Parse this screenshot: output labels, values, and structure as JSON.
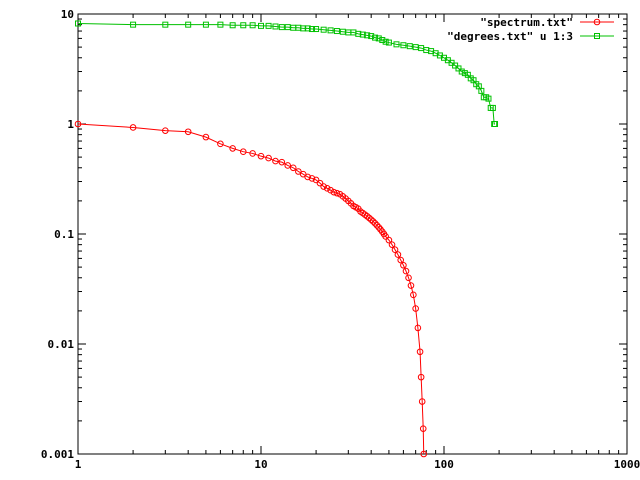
{
  "chart_data": {
    "type": "line",
    "xscale": "log",
    "yscale": "log",
    "xlim": [
      1,
      1000
    ],
    "ylim": [
      0.001,
      10
    ],
    "xticks": [
      "1",
      "10",
      "100",
      "1000"
    ],
    "yticks": [
      "10",
      "1",
      "0.1",
      "0.01",
      "0.001"
    ],
    "grid": false,
    "legend_position": "top-right",
    "series": [
      {
        "name": "\"spectrum.txt\"",
        "color": "#ff0000",
        "marker": "circle",
        "points": [
          [
            1,
            1.0
          ],
          [
            2,
            0.93
          ],
          [
            3,
            0.87
          ],
          [
            4,
            0.85
          ],
          [
            5,
            0.76
          ],
          [
            6,
            0.66
          ],
          [
            7,
            0.6
          ],
          [
            8,
            0.56
          ],
          [
            9,
            0.54
          ],
          [
            10,
            0.51
          ],
          [
            11,
            0.49
          ],
          [
            12,
            0.46
          ],
          [
            13,
            0.45
          ],
          [
            14,
            0.42
          ],
          [
            15,
            0.4
          ],
          [
            16,
            0.37
          ],
          [
            17,
            0.35
          ],
          [
            18,
            0.33
          ],
          [
            19,
            0.32
          ],
          [
            20,
            0.31
          ],
          [
            21,
            0.29
          ],
          [
            22,
            0.27
          ],
          [
            23,
            0.26
          ],
          [
            24,
            0.25
          ],
          [
            25,
            0.24
          ],
          [
            26,
            0.235
          ],
          [
            27,
            0.23
          ],
          [
            28,
            0.22
          ],
          [
            29,
            0.21
          ],
          [
            30,
            0.2
          ],
          [
            31,
            0.19
          ],
          [
            32,
            0.18
          ],
          [
            33,
            0.175
          ],
          [
            34,
            0.17
          ],
          [
            35,
            0.16
          ],
          [
            36,
            0.155
          ],
          [
            37,
            0.15
          ],
          [
            38,
            0.145
          ],
          [
            39,
            0.14
          ],
          [
            40,
            0.135
          ],
          [
            41,
            0.13
          ],
          [
            42,
            0.125
          ],
          [
            43,
            0.12
          ],
          [
            44,
            0.115
          ],
          [
            45,
            0.11
          ],
          [
            46,
            0.105
          ],
          [
            47,
            0.1
          ],
          [
            48,
            0.095
          ],
          [
            50,
            0.088
          ],
          [
            52,
            0.08
          ],
          [
            54,
            0.072
          ],
          [
            56,
            0.065
          ],
          [
            58,
            0.058
          ],
          [
            60,
            0.052
          ],
          [
            62,
            0.046
          ],
          [
            64,
            0.04
          ],
          [
            66,
            0.034
          ],
          [
            68,
            0.028
          ],
          [
            70,
            0.021
          ],
          [
            72,
            0.014
          ],
          [
            74,
            0.0085
          ],
          [
            75,
            0.005
          ],
          [
            76,
            0.003
          ],
          [
            77,
            0.0017
          ],
          [
            77.5,
            0.001
          ]
        ]
      },
      {
        "name": "\"degrees.txt\" u 1:3",
        "color": "#00c000",
        "marker": "square",
        "points": [
          [
            1,
            8.2
          ],
          [
            2,
            8.0
          ],
          [
            3,
            8.0
          ],
          [
            4,
            8.0
          ],
          [
            5,
            8.0
          ],
          [
            6,
            8.0
          ],
          [
            7,
            7.9
          ],
          [
            8,
            7.9
          ],
          [
            9,
            7.9
          ],
          [
            10,
            7.8
          ],
          [
            11,
            7.8
          ],
          [
            12,
            7.7
          ],
          [
            13,
            7.6
          ],
          [
            14,
            7.6
          ],
          [
            15,
            7.5
          ],
          [
            16,
            7.5
          ],
          [
            17,
            7.4
          ],
          [
            18,
            7.4
          ],
          [
            19,
            7.3
          ],
          [
            20,
            7.3
          ],
          [
            22,
            7.2
          ],
          [
            24,
            7.1
          ],
          [
            26,
            7.0
          ],
          [
            28,
            6.9
          ],
          [
            30,
            6.8
          ],
          [
            32,
            6.8
          ],
          [
            34,
            6.6
          ],
          [
            36,
            6.5
          ],
          [
            38,
            6.4
          ],
          [
            40,
            6.3
          ],
          [
            42,
            6.1
          ],
          [
            44,
            6.0
          ],
          [
            46,
            5.8
          ],
          [
            48,
            5.6
          ],
          [
            50,
            5.5
          ],
          [
            55,
            5.3
          ],
          [
            60,
            5.2
          ],
          [
            65,
            5.1
          ],
          [
            70,
            5.0
          ],
          [
            75,
            4.9
          ],
          [
            80,
            4.7
          ],
          [
            85,
            4.6
          ],
          [
            90,
            4.4
          ],
          [
            95,
            4.2
          ],
          [
            100,
            4.0
          ],
          [
            105,
            3.8
          ],
          [
            110,
            3.6
          ],
          [
            115,
            3.4
          ],
          [
            120,
            3.2
          ],
          [
            125,
            3.0
          ],
          [
            130,
            2.9
          ],
          [
            135,
            2.8
          ],
          [
            140,
            2.6
          ],
          [
            145,
            2.5
          ],
          [
            150,
            2.3
          ],
          [
            155,
            2.2
          ],
          [
            160,
            2.0
          ],
          [
            165,
            1.75
          ],
          [
            170,
            1.75
          ],
          [
            175,
            1.7
          ],
          [
            180,
            1.4
          ],
          [
            185,
            1.4
          ],
          [
            188,
            1.0
          ],
          [
            190,
            1.0
          ]
        ]
      }
    ]
  }
}
